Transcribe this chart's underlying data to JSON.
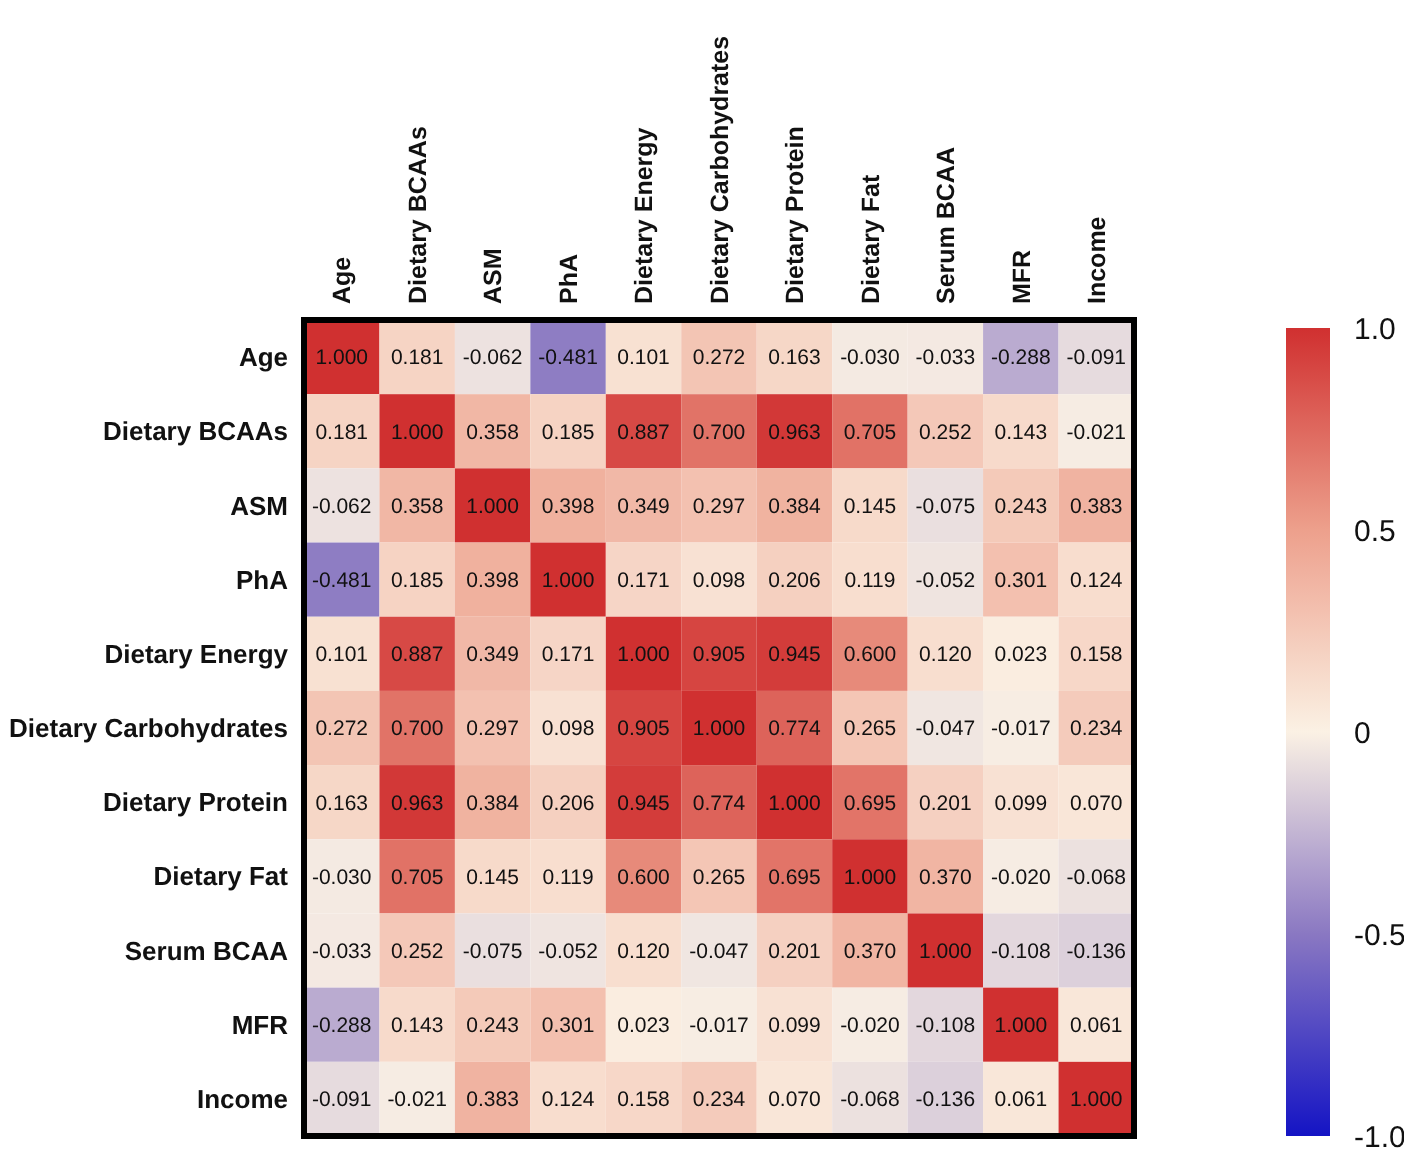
{
  "chart_data": {
    "type": "heatmap",
    "categories": [
      "Age",
      "Dietary BCAAs",
      "ASM",
      "PhA",
      "Dietary Energy",
      "Dietary Carbohydrates",
      "Dietary Protein",
      "Dietary Fat",
      "Serum BCAA",
      "MFR",
      "Income"
    ],
    "y_categories": [
      "Age",
      "Dietary BCAAs",
      "ASM",
      "PhA",
      "Dietary Energy",
      "Dietary Carbohydrates",
      "Dietary Protein",
      "Dietary Fat",
      "Serum BCAA",
      "MFR",
      "Income"
    ],
    "cells": [
      [
        1.0,
        0.181,
        -0.062,
        -0.481,
        0.101,
        0.272,
        0.163,
        -0.03,
        -0.033,
        -0.288,
        -0.091
      ],
      [
        0.181,
        1.0,
        0.358,
        0.185,
        0.887,
        0.7,
        0.963,
        0.705,
        0.252,
        0.143,
        -0.021
      ],
      [
        -0.062,
        0.358,
        1.0,
        0.398,
        0.349,
        0.297,
        0.384,
        0.145,
        -0.075,
        0.243,
        0.383
      ],
      [
        -0.481,
        0.185,
        0.398,
        1.0,
        0.171,
        0.098,
        0.206,
        0.119,
        -0.052,
        0.301,
        0.124
      ],
      [
        0.101,
        0.887,
        0.349,
        0.171,
        1.0,
        0.905,
        0.945,
        0.6,
        0.12,
        0.023,
        0.158
      ],
      [
        0.272,
        0.7,
        0.297,
        0.098,
        0.905,
        1.0,
        0.774,
        0.265,
        -0.047,
        -0.017,
        0.234
      ],
      [
        0.163,
        0.963,
        0.384,
        0.206,
        0.945,
        0.774,
        1.0,
        0.695,
        0.201,
        0.099,
        0.07
      ],
      [
        -0.03,
        0.705,
        0.145,
        0.119,
        0.6,
        0.265,
        0.695,
        1.0,
        0.37,
        -0.02,
        -0.068
      ],
      [
        -0.033,
        0.252,
        -0.075,
        -0.052,
        0.12,
        -0.047,
        0.201,
        0.37,
        1.0,
        -0.108,
        -0.136
      ],
      [
        -0.288,
        0.143,
        0.243,
        0.301,
        0.023,
        -0.017,
        0.099,
        -0.02,
        -0.108,
        1.0,
        0.061
      ],
      [
        -0.091,
        -0.021,
        0.383,
        0.124,
        0.158,
        0.234,
        0.07,
        -0.068,
        -0.136,
        0.061,
        1.0
      ]
    ],
    "cell_labels": [
      [
        "1.000",
        "0.181",
        "-0.062",
        "-0.481",
        "0.101",
        "0.272",
        "0.163",
        "-0.030",
        "-0.033",
        "-0.288",
        "-0.091"
      ],
      [
        "0.181",
        "1.000",
        "0.358",
        "0.185",
        "0.887",
        "0.700",
        "0.963",
        "0.705",
        "0.252",
        "0.143",
        "-0.021"
      ],
      [
        "-0.062",
        "0.358",
        "1.000",
        "0.398",
        "0.349",
        "0.297",
        "0.384",
        "0.145",
        "-0.075",
        "0.243",
        "0.383"
      ],
      [
        "-0.481",
        "0.185",
        "0.398",
        "1.000",
        "0.171",
        "0.098",
        "0.206",
        "0.119",
        "-0.052",
        "0.301",
        "0.124"
      ],
      [
        "0.101",
        "0.887",
        "0.349",
        "0.171",
        "1.000",
        "0.905",
        "0.945",
        "0.600",
        "0.120",
        "0.023",
        "0.158"
      ],
      [
        "0.272",
        "0.700",
        "0.297",
        "0.098",
        "0.905",
        "1.000",
        "0.774",
        "0.265",
        "-0.047",
        "-0.017",
        "0.234"
      ],
      [
        "0.163",
        "0.963",
        "0.384",
        "0.206",
        "0.945",
        "0.774",
        "1.000",
        "0.695",
        "0.201",
        "0.099",
        "0.070"
      ],
      [
        "-0.030",
        "0.705",
        "0.145",
        "0.119",
        "0.600",
        "0.265",
        "0.695",
        "1.000",
        "0.370",
        "-0.020",
        "-0.068"
      ],
      [
        "-0.033",
        "0.252",
        "-0.075",
        "-0.052",
        "0.120",
        "-0.047",
        "0.201",
        "0.370",
        "1.000",
        "-0.108",
        "-0.136"
      ],
      [
        "-0.288",
        "0.143",
        "0.243",
        "0.301",
        "0.023",
        "-0.017",
        "0.099",
        "-0.020",
        "-0.108",
        "1.000",
        "0.061"
      ],
      [
        "-0.091",
        "-0.021",
        "0.383",
        "0.124",
        "0.158",
        "0.234",
        "0.070",
        "-0.068",
        "-0.136",
        "0.061",
        "1.000"
      ]
    ],
    "data_labels": true,
    "clim": [
      -1,
      1
    ],
    "cticks": [
      {
        "value": 1,
        "label": "1.0"
      },
      0.5,
      0,
      -0.5,
      {
        "value": -1,
        "label": "-1.0"
      }
    ]
  }
}
